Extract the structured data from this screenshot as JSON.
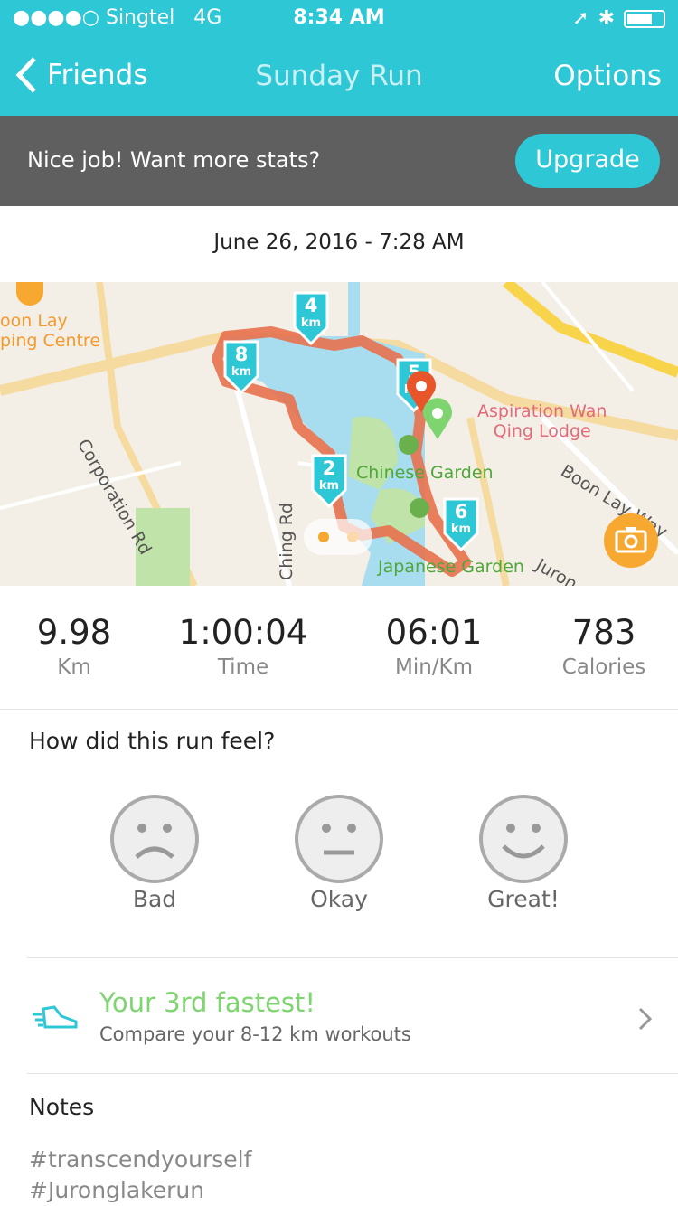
{
  "status_bar": {
    "carrier": "●●●●○ Singtel",
    "network": "4G",
    "time": "8:34 AM"
  },
  "nav": {
    "back_label": "Friends",
    "title": "Sunday Run",
    "options_label": "Options"
  },
  "banner": {
    "message": "Nice job! Want more stats?",
    "upgrade_label": "Upgrade"
  },
  "run": {
    "date": "June 26, 2016 - 7:28 AM"
  },
  "map": {
    "labels": {
      "mall": "oon Lay\nping Centre",
      "lodge": "Aspiration Wan\nQing Lodge",
      "corporation": "Corporation Rd",
      "ching": "Ching Rd",
      "boonlay": "Boon Lay Way",
      "jurong": "Juron",
      "chinese": "Chinese Garden",
      "japanese": "Japanese Garden"
    },
    "markers": [
      {
        "label": "4",
        "unit": "km"
      },
      {
        "label": "8",
        "unit": "km"
      },
      {
        "label": "5",
        "unit": "km"
      },
      {
        "label": "2",
        "unit": "km"
      },
      {
        "label": "6",
        "unit": "km"
      }
    ],
    "route_color": "#e8714e"
  },
  "stats": [
    {
      "value": "9.98",
      "unit": "Km"
    },
    {
      "value": "1:00:04",
      "unit": "Time"
    },
    {
      "value": "06:01",
      "unit": "Min/Km"
    },
    {
      "value": "783",
      "unit": "Calories"
    }
  ],
  "feel": {
    "question": "How did this run feel?",
    "options": [
      {
        "label": "Bad"
      },
      {
        "label": "Okay"
      },
      {
        "label": "Great!"
      }
    ]
  },
  "achievement": {
    "title": "Your 3rd fastest!",
    "subtitle": "Compare your 8-12 km workouts"
  },
  "notes": {
    "heading": "Notes",
    "lines": [
      "#transcendyourself",
      "#Juronglakerun"
    ]
  },
  "colors": {
    "accent": "#2ec7d6",
    "banner": "#5f5f5f",
    "achievement": "#7ed56f",
    "camera": "#f7a830"
  }
}
